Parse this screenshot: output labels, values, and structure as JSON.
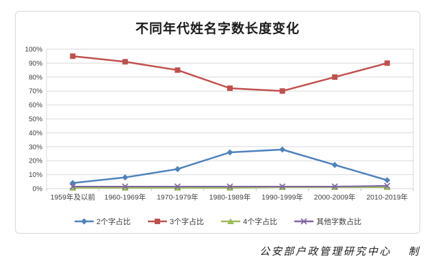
{
  "chart": {
    "source_credit": "公安部户政管理研究中心　 制"
  },
  "chart_data": {
    "type": "line",
    "title": "不同年代姓名字数长度变化",
    "categories": [
      "1959年及以前",
      "1960-1969年",
      "1970-1979年",
      "1980-1989年",
      "1990-1999年",
      "2000-2009年",
      "2010-2019年"
    ],
    "series": [
      {
        "id": "two-char-share",
        "name": "2个字占比",
        "color": "#4F81BD",
        "marker": "diamond",
        "line_width": 2.5,
        "values": [
          4,
          8,
          14,
          26,
          28,
          17,
          6
        ]
      },
      {
        "id": "three-char-share",
        "name": "3个字占比",
        "color": "#C0504D",
        "marker": "square",
        "line_width": 2.5,
        "values": [
          95,
          91,
          85,
          72,
          70,
          80,
          90
        ]
      },
      {
        "id": "four-char-share",
        "name": "4个字占比",
        "color": "#9BBB59",
        "marker": "triangle",
        "line_width": 2,
        "values": [
          0.5,
          0.5,
          0.5,
          0.5,
          1,
          1,
          1
        ]
      },
      {
        "id": "other-length-share",
        "name": "其他字数占比",
        "color": "#8064A2",
        "marker": "x",
        "line_width": 2,
        "values": [
          1.5,
          1.5,
          1.5,
          1.5,
          1.5,
          1.5,
          2
        ]
      }
    ],
    "ylim": [
      0,
      100
    ],
    "ytick_step": 10,
    "ytick_labels": [
      "0%",
      "10%",
      "20%",
      "30%",
      "40%",
      "50%",
      "60%",
      "70%",
      "80%",
      "90%",
      "100%"
    ],
    "grid": true,
    "grid_color": "#D9D9D9",
    "axis_color": "#BFBFBF",
    "axis_text_color": "#404040",
    "legend_position": "bottom",
    "xlabel": "",
    "ylabel": ""
  }
}
